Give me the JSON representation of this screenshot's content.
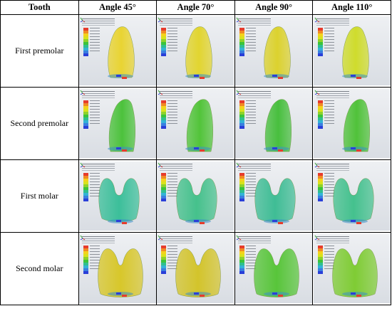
{
  "table": {
    "header": {
      "tooth": "Tooth",
      "angles": [
        "Angle 45°",
        "Angle 70°",
        "Angle 90°",
        "Angle 110°"
      ]
    },
    "rows": [
      {
        "label": "First premolar"
      },
      {
        "label": "Second premolar"
      },
      {
        "label": "First molar"
      },
      {
        "label": "Second molar"
      }
    ]
  },
  "colors": {
    "border": "#000000",
    "panel_bg": "#e4e7eb",
    "stress_scale": [
      "#e63c2c",
      "#f08a24",
      "#f4d21c",
      "#d9e21c",
      "#8fd22a",
      "#3cc43a",
      "#2fbf8f",
      "#33b3d6",
      "#3a7fe0",
      "#2a3fd8"
    ]
  }
}
